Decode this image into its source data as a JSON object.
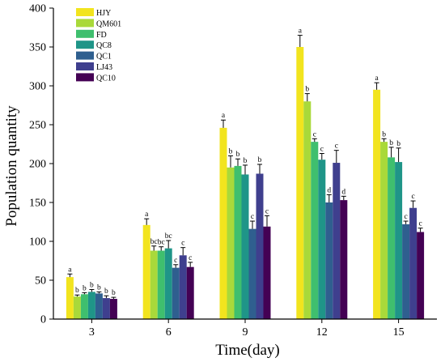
{
  "chart_data": {
    "type": "bar",
    "xlabel": "Time(day)",
    "ylabel": "Population quantity",
    "ylim": [
      0,
      400
    ],
    "yticks": [
      0,
      50,
      100,
      150,
      200,
      250,
      300,
      350,
      400
    ],
    "categories": [
      "3",
      "6",
      "9",
      "12",
      "15"
    ],
    "legend_position": "top-left",
    "series": [
      {
        "name": "HJY",
        "color": "#f2e41e",
        "values": [
          54,
          121,
          246,
          350,
          295
        ],
        "errors": [
          4,
          8,
          10,
          15,
          9
        ],
        "letters": [
          "a",
          "a",
          "a",
          "a",
          "a"
        ]
      },
      {
        "name": "QM601",
        "color": "#a9d93a",
        "values": [
          29,
          88,
          195,
          280,
          228
        ],
        "errors": [
          2,
          6,
          15,
          10,
          4
        ],
        "letters": [
          "b",
          "bc",
          "b",
          "b",
          "b"
        ]
      },
      {
        "name": "FD",
        "color": "#3fbf6e",
        "values": [
          32,
          88,
          197,
          228,
          208
        ],
        "errors": [
          2,
          5,
          9,
          4,
          13
        ],
        "letters": [
          "b",
          "bc",
          "b",
          "c",
          "b"
        ]
      },
      {
        "name": "QC8",
        "color": "#1f9588",
        "values": [
          35,
          91,
          186,
          205,
          202
        ],
        "errors": [
          3,
          10,
          12,
          8,
          18
        ],
        "letters": [
          "b",
          "bc",
          "b",
          "c",
          "b"
        ]
      },
      {
        "name": "QC1",
        "color": "#2f5f8f",
        "values": [
          33,
          66,
          116,
          150,
          122
        ],
        "errors": [
          2,
          4,
          10,
          10,
          4
        ],
        "letters": [
          "b",
          "c",
          "c",
          "d",
          "c"
        ]
      },
      {
        "name": "LJ43",
        "color": "#3f3f8e",
        "values": [
          27,
          82,
          187,
          201,
          143
        ],
        "errors": [
          3,
          10,
          12,
          16,
          9
        ],
        "letters": [
          "b",
          "c",
          "b",
          "c",
          "c"
        ]
      },
      {
        "name": "QC10",
        "color": "#440154",
        "values": [
          26,
          67,
          119,
          153,
          112
        ],
        "errors": [
          2,
          6,
          14,
          5,
          5
        ],
        "letters": [
          "b",
          "c",
          "c",
          "d",
          "c"
        ]
      }
    ]
  }
}
